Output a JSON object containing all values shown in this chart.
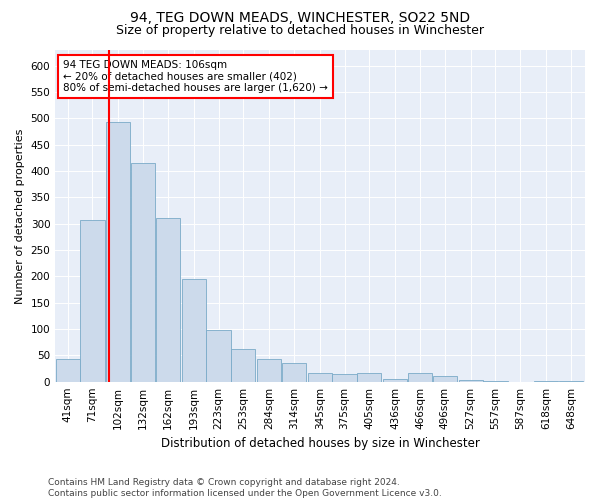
{
  "title": "94, TEG DOWN MEADS, WINCHESTER, SO22 5ND",
  "subtitle": "Size of property relative to detached houses in Winchester",
  "xlabel": "Distribution of detached houses by size in Winchester",
  "ylabel": "Number of detached properties",
  "bar_color": "#ccdaeb",
  "bar_edge_color": "#7aaac8",
  "background_color": "#e8eef8",
  "annotation_text": "94 TEG DOWN MEADS: 106sqm\n← 20% of detached houses are smaller (402)\n80% of semi-detached houses are larger (1,620) →",
  "property_line_x": 106,
  "categories": [
    "41sqm",
    "71sqm",
    "102sqm",
    "132sqm",
    "162sqm",
    "193sqm",
    "223sqm",
    "253sqm",
    "284sqm",
    "314sqm",
    "345sqm",
    "375sqm",
    "405sqm",
    "436sqm",
    "466sqm",
    "496sqm",
    "527sqm",
    "557sqm",
    "587sqm",
    "618sqm",
    "648sqm"
  ],
  "bin_edges": [
    41,
    71,
    102,
    132,
    162,
    193,
    223,
    253,
    284,
    314,
    345,
    375,
    405,
    436,
    466,
    496,
    527,
    557,
    587,
    618,
    648
  ],
  "bin_width": 30,
  "values": [
    43,
    308,
    493,
    415,
    310,
    195,
    98,
    63,
    43,
    35,
    17,
    15,
    17,
    5,
    17,
    10,
    3,
    1,
    0,
    1,
    1
  ],
  "ylim": [
    0,
    630
  ],
  "yticks": [
    0,
    50,
    100,
    150,
    200,
    250,
    300,
    350,
    400,
    450,
    500,
    550,
    600
  ],
  "footer": "Contains HM Land Registry data © Crown copyright and database right 2024.\nContains public sector information licensed under the Open Government Licence v3.0.",
  "title_fontsize": 10,
  "subtitle_fontsize": 9,
  "xlabel_fontsize": 8.5,
  "ylabel_fontsize": 8,
  "tick_fontsize": 7.5,
  "footer_fontsize": 6.5,
  "annotation_fontsize": 7.5
}
